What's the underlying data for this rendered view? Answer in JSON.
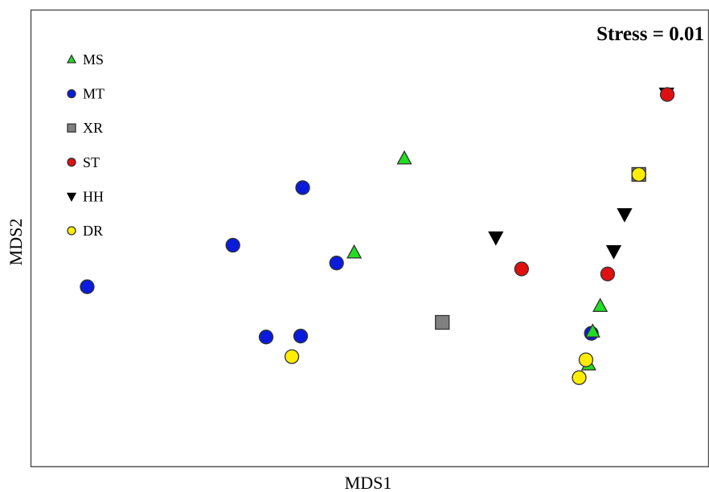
{
  "chart_data": {
    "type": "scatter",
    "title": "",
    "xlabel": "MDS1",
    "ylabel": "MDS2",
    "xlim": [
      0,
      100
    ],
    "ylim": [
      0,
      100
    ],
    "grid": false,
    "legend_position": "top-left",
    "annotation": "Stress = 0.01",
    "series": [
      {
        "name": "MS",
        "marker": "triangle-up",
        "color": "#22dd22",
        "points": [
          [
            55.1,
            67.5
          ],
          [
            47.7,
            46.9
          ],
          [
            84.0,
            35.2
          ],
          [
            82.9,
            29.6
          ],
          [
            82.3,
            22.4
          ]
        ]
      },
      {
        "name": "MT",
        "marker": "circle",
        "color": "#0a1bdc",
        "points": [
          [
            8.3,
            39.4
          ],
          [
            29.8,
            48.5
          ],
          [
            40.1,
            61.1
          ],
          [
            45.1,
            44.6
          ],
          [
            34.7,
            28.4
          ],
          [
            39.8,
            28.6
          ],
          [
            82.7,
            29.2
          ]
        ]
      },
      {
        "name": "XR",
        "marker": "square",
        "color": "#808080",
        "points": [
          [
            60.7,
            31.6
          ],
          [
            89.7,
            64.0
          ]
        ]
      },
      {
        "name": "ST",
        "marker": "circle",
        "color": "#e01010",
        "points": [
          [
            93.9,
            81.5
          ],
          [
            72.4,
            43.3
          ],
          [
            85.1,
            42.2
          ]
        ]
      },
      {
        "name": "HH",
        "marker": "triangle-down",
        "color": "#000000",
        "points": [
          [
            93.8,
            81.7
          ],
          [
            68.6,
            50.2
          ],
          [
            87.6,
            55.3
          ],
          [
            86.0,
            47.2
          ]
        ]
      },
      {
        "name": "DR",
        "marker": "circle",
        "color": "#ffee00",
        "points": [
          [
            89.7,
            64.0
          ],
          [
            38.5,
            24.1
          ],
          [
            81.9,
            23.4
          ],
          [
            80.9,
            19.5
          ]
        ]
      }
    ]
  }
}
